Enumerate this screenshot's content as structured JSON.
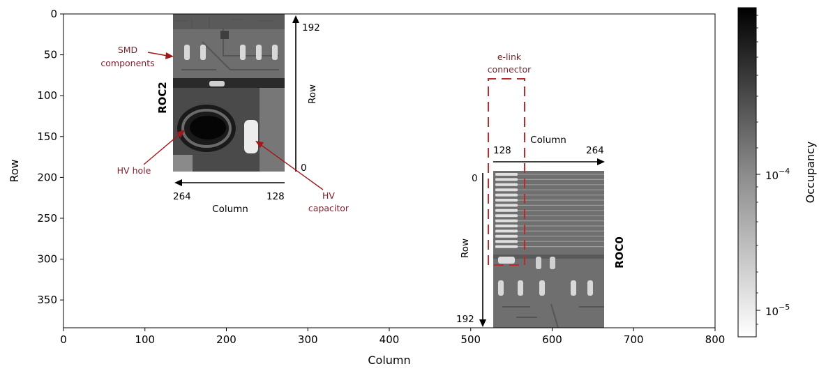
{
  "chart_data": {
    "type": "heatmap",
    "title": "",
    "xlabel": "Column",
    "ylabel": "Row",
    "xlim": [
      0,
      800
    ],
    "ylim": [
      384,
      0
    ],
    "xticks": [
      "0",
      "100",
      "200",
      "300",
      "400",
      "500",
      "600",
      "700",
      "800"
    ],
    "yticks": [
      "0",
      "50",
      "100",
      "150",
      "200",
      "250",
      "300",
      "350"
    ],
    "colorbar": {
      "label": "Occupancy",
      "scale": "log",
      "ticks": [
        "10^-5",
        "10^-4"
      ],
      "colormap": "gray_r"
    },
    "regions": [
      {
        "label": "ROC2",
        "x_range": [
          135,
          272
        ],
        "y_range": [
          0,
          192
        ],
        "local_column_labels": [
          "264",
          "128"
        ],
        "local_column_axis": "Column",
        "local_row_labels": [
          "192",
          "0"
        ],
        "local_row_axis": "Row"
      },
      {
        "label": "ROC0",
        "x_range": [
          528,
          664
        ],
        "y_range": [
          192,
          384
        ],
        "local_column_labels": [
          "128",
          "264"
        ],
        "local_column_axis": "Column",
        "local_row_labels": [
          "0",
          "192"
        ],
        "local_row_axis": "Row"
      }
    ],
    "annotations": [
      {
        "text": "SMD",
        "text2": "components"
      },
      {
        "text": "HV hole"
      },
      {
        "text": "HV",
        "text2": "capacitor"
      },
      {
        "text": "e-link",
        "text2": "connector"
      }
    ]
  }
}
